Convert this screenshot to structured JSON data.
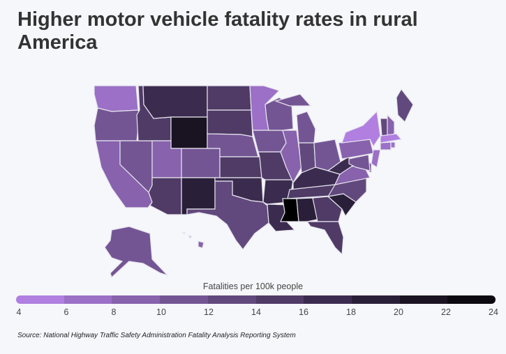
{
  "title": "Higher motor vehicle fatality rates in rural America",
  "legend": {
    "title": "Fatalities per 100k people",
    "ticks": [
      "4",
      "6",
      "8",
      "10",
      "12",
      "14",
      "16",
      "18",
      "20",
      "22",
      "24"
    ],
    "colors": [
      "#b07fe0",
      "#9b70c6",
      "#8862ad",
      "#745594",
      "#62497d",
      "#4f3b66",
      "#3b2c4f",
      "#2a1f38",
      "#1a1322",
      "#0c0911"
    ]
  },
  "chart_data": {
    "type": "choropleth",
    "metric": "Fatalities per 100k people",
    "range": [
      4,
      24
    ],
    "values": {
      "WA": 7,
      "OR": 11,
      "CA": 9,
      "NV": 11,
      "ID": 15,
      "MT": 17,
      "WY": 21,
      "UT": 9,
      "CO": 11,
      "AZ": 15,
      "NM": 19,
      "ND": 15,
      "SD": 15,
      "NE": 11,
      "KS": 15,
      "OK": 17,
      "TX": 13,
      "MN": 7,
      "IA": 11,
      "MO": 15,
      "AR": 17,
      "LA": 17,
      "WI": 11,
      "IL": 9,
      "MI": 11,
      "IN": 13,
      "OH": 11,
      "KY": 17,
      "TN": 15,
      "MS": 23,
      "AL": 19,
      "GA": 15,
      "FL": 15,
      "SC": 19,
      "NC": 13,
      "VA": 9,
      "WV": 17,
      "PA": 9,
      "NY": 5,
      "VT": 13,
      "NH": 9,
      "ME": 13,
      "MA": 5,
      "CT": 7,
      "RI": 7,
      "NJ": 7,
      "DE": 13,
      "MD": 11,
      "AK": 11,
      "HI": 9
    }
  },
  "source": "Source: National Highway Traffic Safety Administration Fatality Analysis Reporting System"
}
